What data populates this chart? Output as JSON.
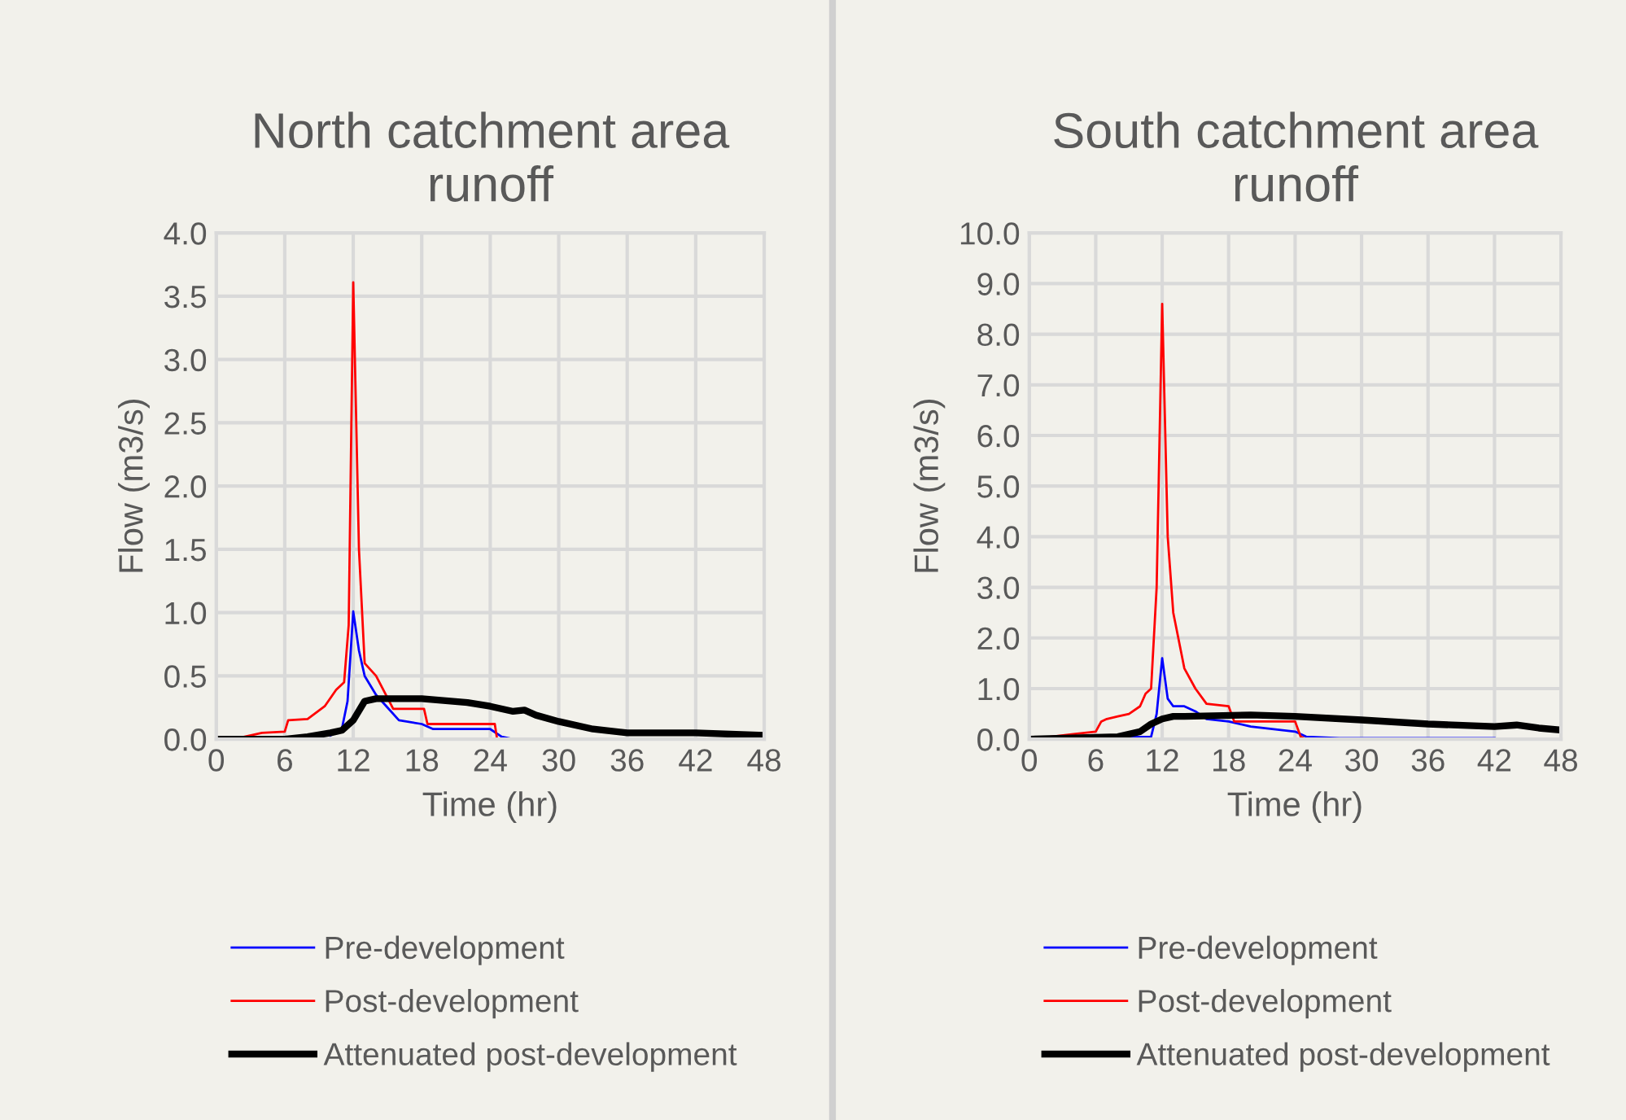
{
  "chart_data": [
    {
      "type": "line",
      "title": "North catchment area\nrunoff",
      "xlabel": "Time (hr)",
      "ylabel": "Flow (m3/s)",
      "xlim": [
        0,
        48
      ],
      "xticks": [
        0,
        6,
        12,
        18,
        24,
        30,
        36,
        42,
        48
      ],
      "ylim": [
        0,
        4.0
      ],
      "yticks": [
        {
          "value": 0,
          "label": "0.0"
        },
        {
          "value": 0.5,
          "label": "0.5"
        },
        {
          "value": 1.0,
          "label": "1.0"
        },
        {
          "value": 1.5,
          "label": "1.5"
        },
        {
          "value": 2.0,
          "label": "2.0"
        },
        {
          "value": 2.5,
          "label": "2.5"
        },
        {
          "value": 3.0,
          "label": "3.0"
        },
        {
          "value": 3.5,
          "label": "3.5"
        },
        {
          "value": 4.0,
          "label": "4.0"
        }
      ],
      "grid": true,
      "legend": "bottom",
      "marker": "none",
      "series": [
        {
          "name": "Pre-development",
          "color": "#0000ff",
          "x": [
            10,
            11,
            11.5,
            12,
            12.5,
            13,
            14,
            15,
            16,
            18,
            19,
            24,
            25,
            26
          ],
          "values": [
            0.03,
            0.08,
            0.3,
            1.01,
            0.7,
            0.5,
            0.35,
            0.25,
            0.15,
            0.12,
            0.08,
            0.08,
            0.02,
            0
          ]
        },
        {
          "name": "Post-development",
          "color": "#ff0000",
          "x": [
            0,
            2,
            4,
            6,
            6.3,
            8,
            9.5,
            10.5,
            11.2,
            11.6,
            12,
            12.5,
            13,
            14,
            15.5,
            18.2,
            18.5,
            24.4,
            24.6,
            48
          ],
          "values": [
            0,
            0.01,
            0.05,
            0.06,
            0.15,
            0.16,
            0.26,
            0.39,
            0.45,
            0.9,
            3.61,
            1.5,
            0.6,
            0.5,
            0.24,
            0.24,
            0.12,
            0.12,
            0,
            0
          ]
        },
        {
          "name": "Attenuated post-development",
          "color": "#000000",
          "x": [
            0,
            6,
            8,
            10,
            11,
            12,
            13,
            14,
            18,
            22,
            24,
            26,
            27,
            28,
            30,
            33,
            36,
            42,
            48
          ],
          "values": [
            0,
            0,
            0.02,
            0.05,
            0.07,
            0.15,
            0.3,
            0.32,
            0.32,
            0.29,
            0.26,
            0.22,
            0.23,
            0.19,
            0.14,
            0.08,
            0.05,
            0.05,
            0.03
          ]
        }
      ]
    },
    {
      "type": "line",
      "title": "South catchment area\nrunoff",
      "xlabel": "Time (hr)",
      "ylabel": "Flow (m3/s)",
      "xlim": [
        0,
        48
      ],
      "xticks": [
        0,
        6,
        12,
        18,
        24,
        30,
        36,
        42,
        48
      ],
      "ylim": [
        0,
        10.0
      ],
      "yticks": [
        {
          "value": 0,
          "label": "0.0"
        },
        {
          "value": 1,
          "label": "1.0"
        },
        {
          "value": 2,
          "label": "2.0"
        },
        {
          "value": 3,
          "label": "3.0"
        },
        {
          "value": 4,
          "label": "4.0"
        },
        {
          "value": 5,
          "label": "5.0"
        },
        {
          "value": 6,
          "label": "6.0"
        },
        {
          "value": 7,
          "label": "7.0"
        },
        {
          "value": 8,
          "label": "8.0"
        },
        {
          "value": 9,
          "label": "9.0"
        },
        {
          "value": 10,
          "label": "10.0"
        }
      ],
      "grid": true,
      "legend": "bottom",
      "marker": "none",
      "series": [
        {
          "name": "Pre-development",
          "color": "#0000ff",
          "x": [
            0,
            11,
            11.5,
            12,
            12.5,
            13,
            14,
            15,
            16,
            18,
            20,
            24,
            25,
            28,
            42
          ],
          "values": [
            0,
            0.05,
            0.5,
            1.6,
            0.8,
            0.65,
            0.65,
            0.55,
            0.4,
            0.35,
            0.25,
            0.15,
            0.05,
            0.02,
            0.02
          ]
        },
        {
          "name": "Post-development",
          "color": "#ff0000",
          "x": [
            0,
            4,
            6,
            6.5,
            7,
            8,
            9,
            10,
            10.5,
            11,
            11.5,
            12,
            12.5,
            13,
            14,
            15,
            16,
            18,
            18.5,
            24,
            24.5,
            25,
            48
          ],
          "values": [
            0,
            0.1,
            0.15,
            0.35,
            0.4,
            0.45,
            0.5,
            0.65,
            0.9,
            1.0,
            3.0,
            8.6,
            4.0,
            2.5,
            1.4,
            1.0,
            0.7,
            0.65,
            0.35,
            0.35,
            0.05,
            0,
            0
          ]
        },
        {
          "name": "Attenuated post-development",
          "color": "#000000",
          "x": [
            0,
            8,
            10,
            11,
            12,
            13,
            14,
            20,
            24,
            30,
            36,
            42,
            44,
            46,
            48
          ],
          "values": [
            0,
            0.05,
            0.15,
            0.3,
            0.4,
            0.45,
            0.45,
            0.48,
            0.45,
            0.38,
            0.3,
            0.25,
            0.28,
            0.22,
            0.18
          ]
        }
      ]
    }
  ]
}
